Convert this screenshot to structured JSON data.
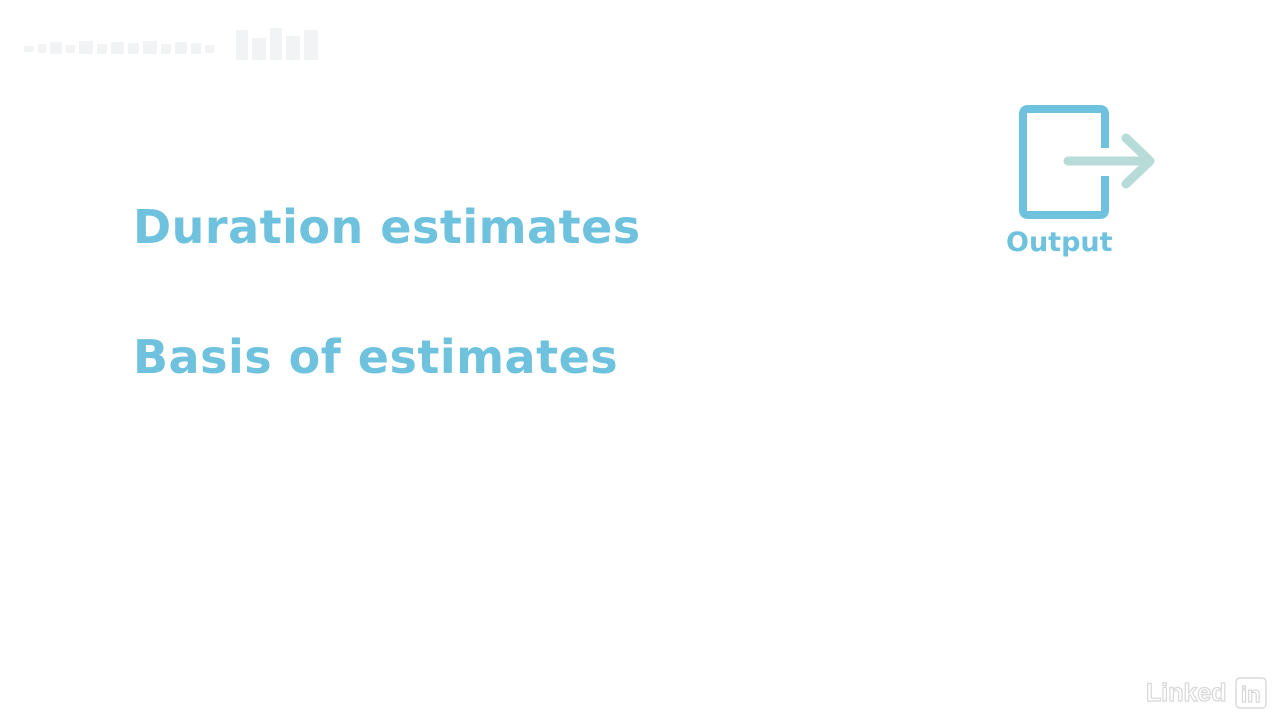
{
  "slide": {
    "items": [
      {
        "label": "Duration estimates"
      },
      {
        "label": "Basis of estimates"
      }
    ],
    "output": {
      "label": "Output",
      "icon": "exit-arrow-icon"
    }
  },
  "watermark": {
    "icon": "faint-watermark-icon"
  },
  "brand": {
    "logo_text": "Linkedin",
    "icon": "linkedin-logo-icon"
  },
  "colors": {
    "accent": "#6fc2dd",
    "arrow": "#b7dcd8",
    "background": "#ffffff"
  }
}
